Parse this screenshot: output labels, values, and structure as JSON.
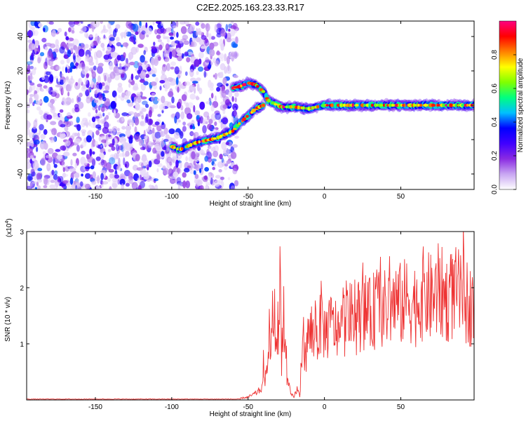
{
  "title": "C2E2.2025.163.23.33.R17",
  "chart_data": [
    {
      "type": "heatmap",
      "title": "C2E2.2025.163.23.33.R17",
      "xlabel": "Height of straight line (km)",
      "ylabel": "Frequency (Hz)",
      "xlim": [
        -195,
        98
      ],
      "ylim": [
        -49,
        49
      ],
      "xticks": [
        -150,
        -100,
        -50,
        0,
        50
      ],
      "yticks": [
        -40,
        -20,
        0,
        20,
        40
      ],
      "colorbar": {
        "label": "Normalized spectral amplitude",
        "range": [
          0,
          1
        ],
        "ticks": [
          "0.0",
          "0.2",
          "0.4",
          "0.6",
          "0.8"
        ],
        "colormap": [
          "#ffffff",
          "#c9a7f2",
          "#8a2be2",
          "#4000ff",
          "#0000ff",
          "#00bfff",
          "#00ff80",
          "#80ff00",
          "#ffff00",
          "#ff8000",
          "#ff0000",
          "#ff0080"
        ]
      },
      "noise_region": {
        "x_range": [
          -195,
          -57
        ],
        "y_range": [
          -49,
          49
        ]
      },
      "traces": [
        {
          "name": "",
          "points": [
            [
              -100,
              -24
            ],
            [
              -95,
              -26
            ],
            [
              -90,
              -24
            ],
            [
              -85,
              -22
            ],
            [
              -80,
              -21
            ],
            [
              -75,
              -20
            ],
            [
              -70,
              -19
            ],
            [
              -65,
              -17
            ],
            [
              -60,
              -15
            ],
            [
              -55,
              -10
            ],
            [
              -50,
              -6
            ],
            [
              -45,
              -2
            ],
            [
              -40,
              0
            ]
          ]
        },
        {
          "name": "",
          "points": [
            [
              -60,
              10
            ],
            [
              -55,
              11
            ],
            [
              -50,
              13
            ],
            [
              -45,
              12
            ],
            [
              -40,
              8
            ],
            [
              -37,
              3
            ],
            [
              -33,
              1
            ],
            [
              -28,
              -1
            ],
            [
              -20,
              -1
            ],
            [
              -10,
              -2
            ],
            [
              0,
              0
            ],
            [
              10,
              0
            ],
            [
              20,
              0
            ],
            [
              30,
              0
            ],
            [
              40,
              0
            ],
            [
              50,
              0
            ],
            [
              60,
              0
            ],
            [
              70,
              0
            ],
            [
              80,
              0
            ],
            [
              90,
              0
            ],
            [
              98,
              0
            ]
          ]
        }
      ]
    },
    {
      "type": "line",
      "xlabel": "Height of straight line (km)",
      "ylabel": "SNR (10 * v/v)",
      "y_multiplier": "(x10",
      "y_multiplier_exp": "4",
      "y_multiplier_close": ")",
      "xlim": [
        -195,
        98
      ],
      "ylim": [
        0,
        3
      ],
      "xticks": [
        -150,
        -100,
        -50,
        0,
        50
      ],
      "yticks": [
        1,
        2,
        3
      ],
      "color": "#ee3333",
      "series": [
        {
          "name": "",
          "x": [
            -195,
            -60,
            -50,
            -45,
            -42,
            -40,
            -38,
            -37,
            -36,
            -35,
            -34,
            -33,
            -32,
            -31,
            -30,
            -29,
            -28,
            -27,
            -26,
            -25,
            -24,
            -23,
            -22,
            -20,
            -18,
            -16,
            -15,
            -14,
            -12,
            -10,
            -8,
            -6,
            -4,
            -2,
            0,
            5,
            10,
            15,
            20,
            25,
            30,
            35,
            40,
            45,
            50,
            55,
            60,
            65,
            70,
            75,
            80,
            85,
            90,
            95,
            98
          ],
          "y": [
            0.01,
            0.01,
            0.05,
            0.12,
            0.18,
            0.25,
            0.45,
            0.8,
            1.3,
            0.6,
            1.4,
            1.8,
            0.9,
            1.5,
            1.0,
            2.2,
            0.7,
            1.9,
            1.1,
            0.5,
            0.3,
            0.2,
            0.1,
            0.05,
            0.2,
            0.05,
            0.9,
            1.1,
            0.8,
            1.3,
            1.0,
            1.4,
            1.1,
            1.5,
            1.2,
            1.35,
            1.2,
            1.5,
            1.4,
            1.6,
            1.5,
            1.7,
            1.6,
            1.75,
            1.7,
            1.8,
            1.7,
            1.9,
            1.8,
            1.95,
            1.8,
            1.9,
            1.85,
            1.7,
            1.6
          ]
        }
      ]
    }
  ]
}
